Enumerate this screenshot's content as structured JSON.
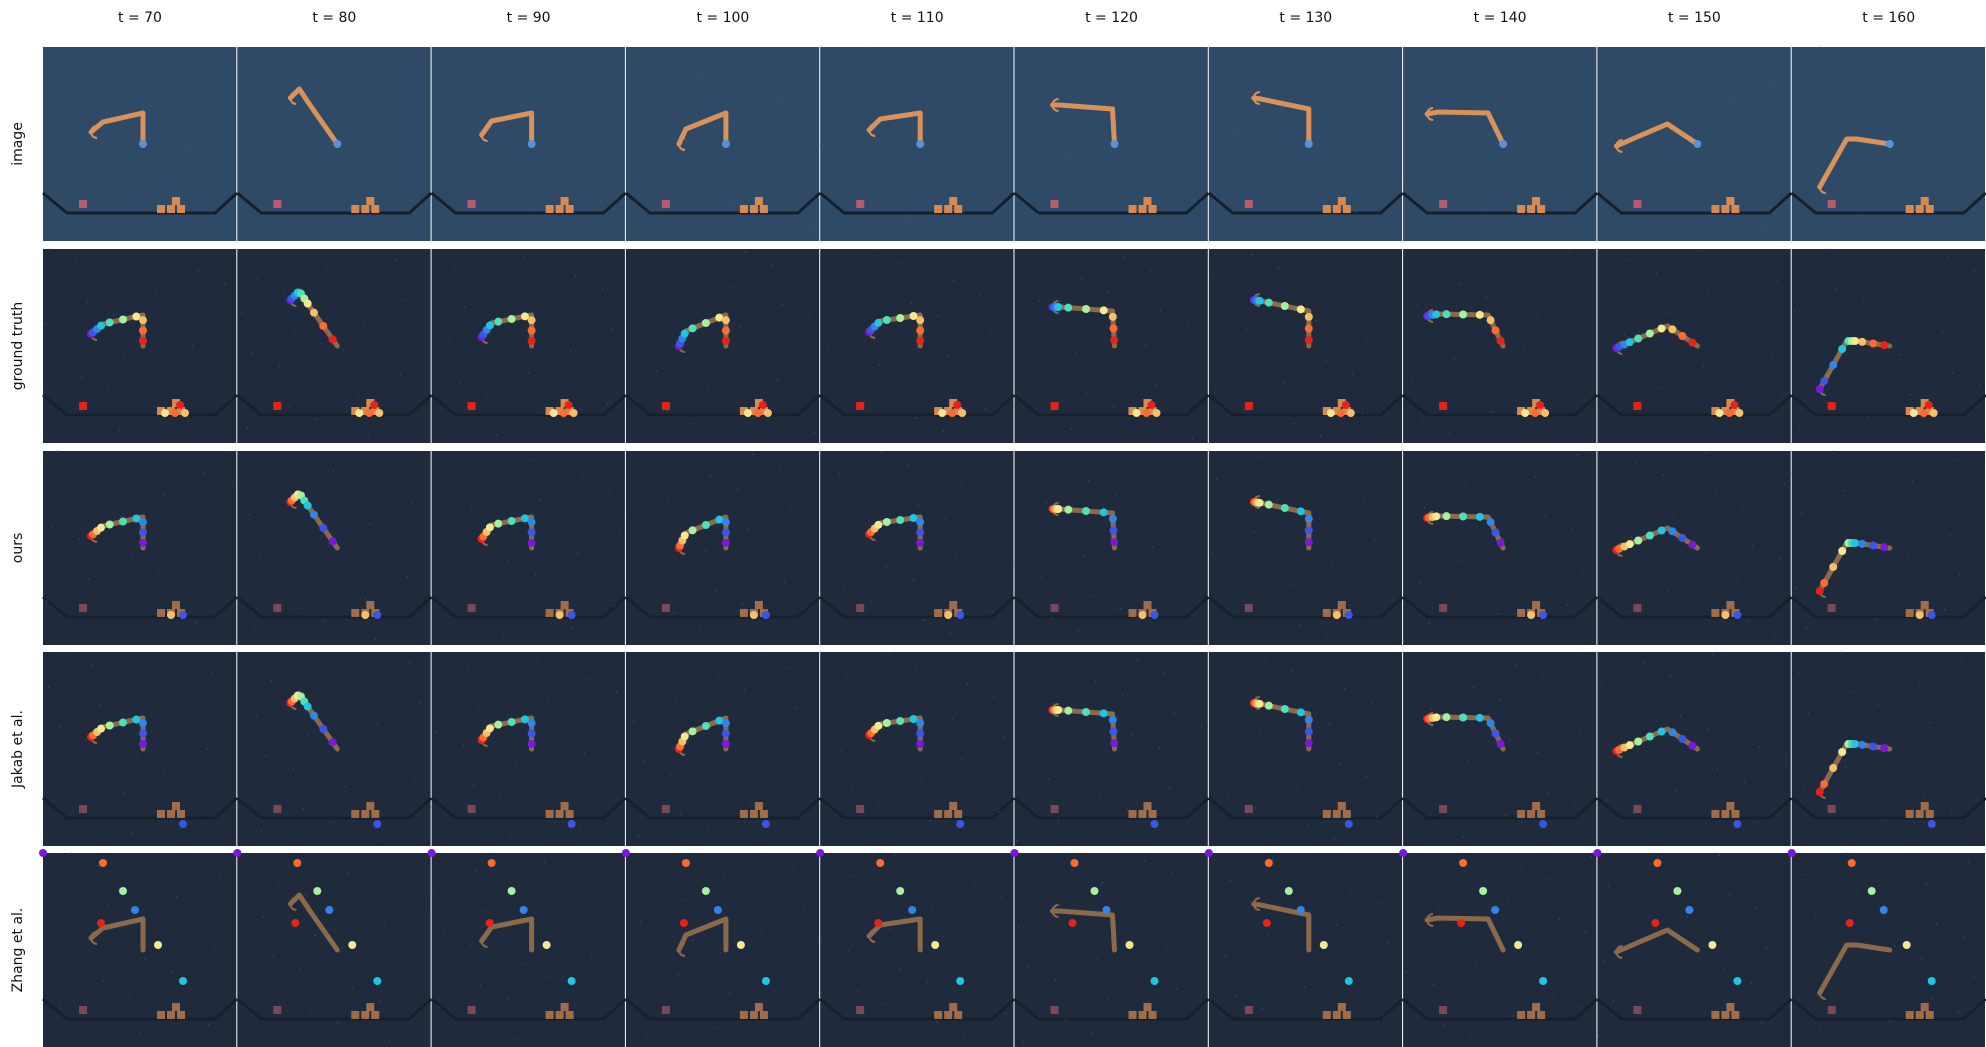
{
  "columns": [
    "t = 70",
    "t = 80",
    "t = 90",
    "t = 100",
    "t = 110",
    "t = 120",
    "t = 130",
    "t = 140",
    "t = 150",
    "t = 160"
  ],
  "rows": [
    "image",
    "ground truth",
    "ours",
    "Jakab et al.",
    "Zhang et al."
  ],
  "colors": {
    "image_background": "#2f4a66",
    "panel_background": "#1f2b3c",
    "arm": "#d8935a",
    "base_joint": "#5b8fd6",
    "box_red": "#b85c6a",
    "box_orange": "#d88a4e",
    "keypoint_palette": [
      "#e82218",
      "#ff6a30",
      "#f5c06a",
      "#f5e890",
      "#a6f0a0",
      "#4fe0b6",
      "#22c4e0",
      "#2f86e8",
      "#3b55e6",
      "#7a18d8"
    ]
  }
}
